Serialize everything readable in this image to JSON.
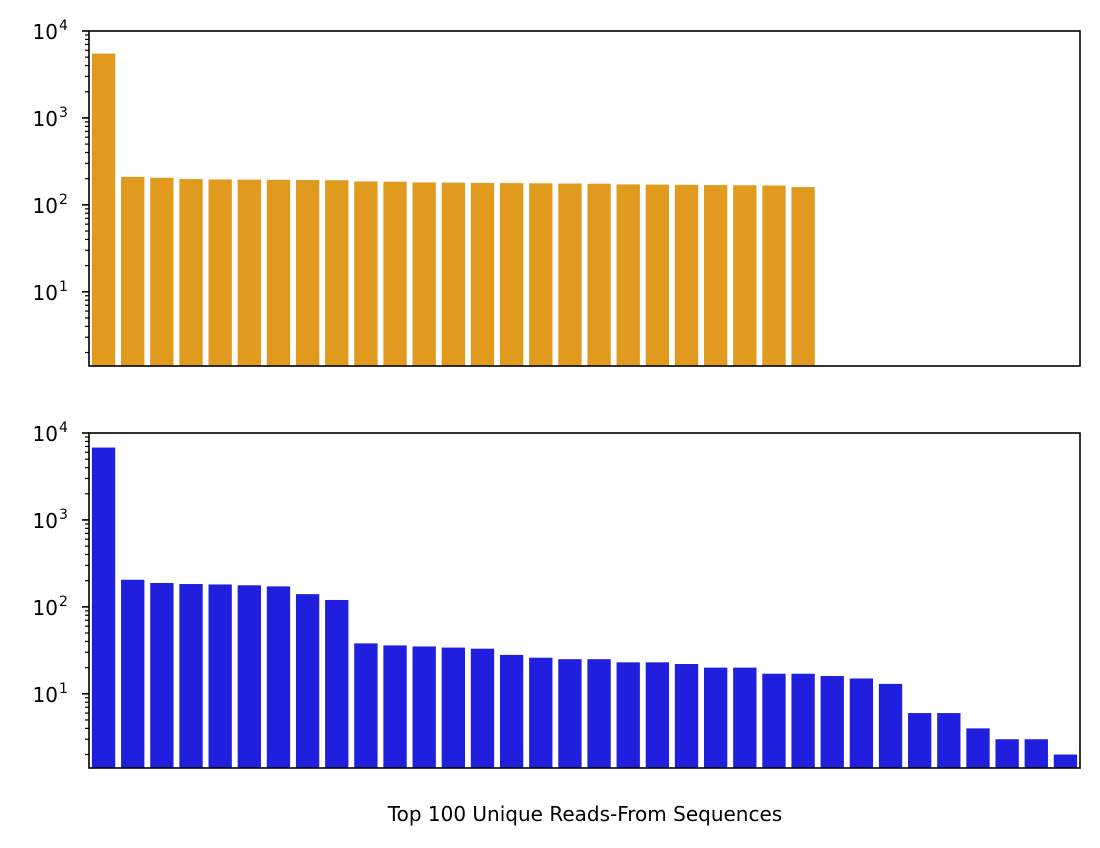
{
  "colors": {
    "top_series": "#E09A1E",
    "bottom_series": "#1F1FDD"
  },
  "xlabel": "Top 100 Unique Reads-From Sequences",
  "chart_data": [
    {
      "type": "bar",
      "scale": "log",
      "ylim": [
        1.4,
        10000
      ],
      "yticks": [
        {
          "value": 10,
          "base": "10",
          "exp": "1"
        },
        {
          "value": 100,
          "base": "10",
          "exp": "2"
        },
        {
          "value": 1000,
          "base": "10",
          "exp": "3"
        },
        {
          "value": 10000,
          "base": "10",
          "exp": "4"
        }
      ],
      "xlabel": "",
      "n_slots": 34,
      "values": [
        5500,
        210,
        205,
        198,
        196,
        195,
        194,
        193,
        192,
        186,
        185,
        181,
        180,
        179,
        178,
        177,
        176,
        175,
        172,
        171,
        170,
        169,
        168,
        167,
        160
      ]
    },
    {
      "type": "bar",
      "scale": "log",
      "ylim": [
        1.4,
        10000
      ],
      "yticks": [
        {
          "value": 10,
          "base": "10",
          "exp": "1"
        },
        {
          "value": 100,
          "base": "10",
          "exp": "2"
        },
        {
          "value": 1000,
          "base": "10",
          "exp": "3"
        },
        {
          "value": 10000,
          "base": "10",
          "exp": "4"
        }
      ],
      "xlabel": "Top 100 Unique Reads-From Sequences",
      "n_slots": 34,
      "values": [
        6800,
        205,
        188,
        183,
        181,
        177,
        172,
        140,
        120,
        38,
        36,
        35,
        34,
        33,
        28,
        26,
        25,
        25,
        23,
        23,
        22,
        20,
        20,
        17,
        17,
        16,
        15,
        13,
        6,
        6,
        4,
        3,
        3,
        2
      ]
    }
  ]
}
